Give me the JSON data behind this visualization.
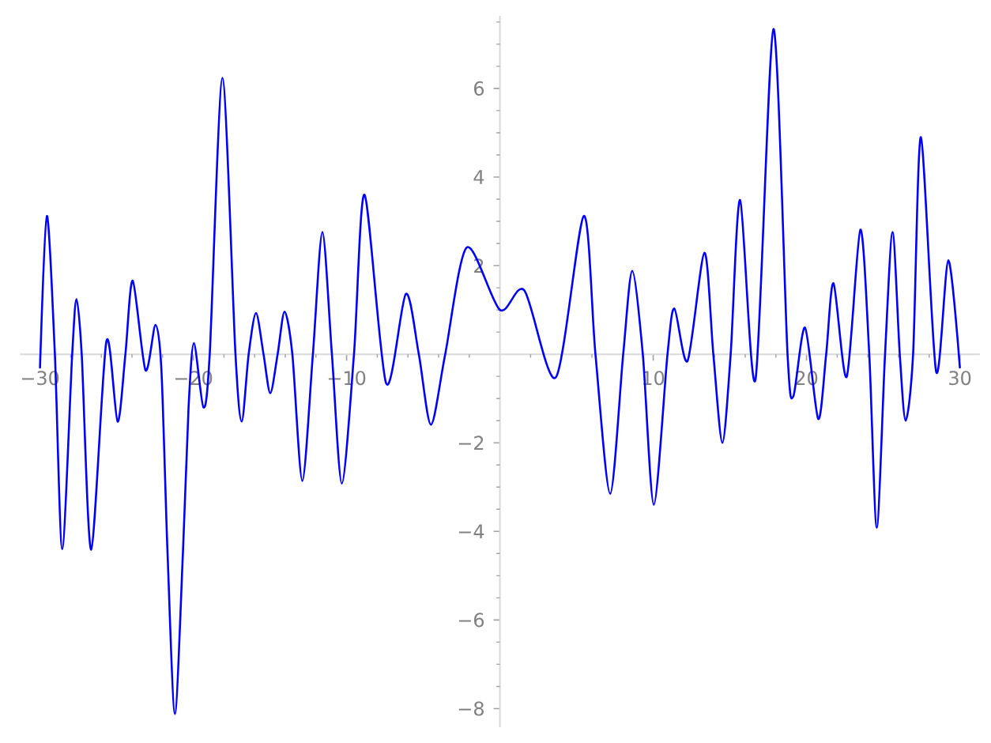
{
  "chart_data": {
    "type": "line",
    "x": [
      -30,
      -29.55,
      -29.03,
      -28.55,
      -27.9,
      -27.62,
      -27.28,
      -26.66,
      -25.67,
      -24.94,
      -24.43,
      -23.95,
      -23.12,
      -22.47,
      -22.08,
      -21.68,
      -21.2,
      -20.68,
      -20.31,
      -19.96,
      -19.34,
      -18.93,
      -18.1,
      -17.25,
      -16.84,
      -16.39,
      -15.91,
      -15.42,
      -14.98,
      -14.5,
      -14.05,
      -13.54,
      -12.89,
      -12.2,
      -11.58,
      -10.96,
      -10.31,
      -9.52,
      -8.83,
      -7.42,
      -6.14,
      -5.29,
      -4.5,
      -3.57,
      -2.16,
      0,
      1.59,
      3.65,
      5.47,
      6.23,
      7.19,
      8.04,
      8.63,
      9.32,
      10.04,
      10.93,
      11.38,
      12.24,
      13.34,
      13.92,
      14.51,
      15.05,
      15.67,
      16.67,
      17.84,
      18.76,
      19.14,
      19.9,
      20.76,
      21.28,
      21.76,
      22.62,
      23.51,
      24.09,
      24.58,
      25.12,
      25.61,
      26.08,
      26.46,
      26.95,
      27.46,
      28.45,
      29.25,
      30
    ],
    "values": [
      -0.3,
      3.12,
      0,
      -4.4,
      0,
      1.24,
      0,
      -4.41,
      0.29,
      -1.52,
      0,
      1.66,
      -0.36,
      0.66,
      -0.36,
      -4.5,
      -8.12,
      -4.5,
      -1.2,
      0.25,
      -1.2,
      0,
      6.24,
      0,
      -1.52,
      0,
      0.93,
      0,
      -0.88,
      0,
      0.96,
      0,
      -2.86,
      0,
      2.76,
      0,
      -2.92,
      0,
      3.6,
      -0.66,
      1.36,
      0,
      -1.59,
      0,
      2.41,
      1.0,
      1.44,
      -0.52,
      3.12,
      0,
      -3.15,
      0,
      1.88,
      0,
      -3.4,
      0,
      1.03,
      -0.15,
      2.29,
      0,
      -2.0,
      0,
      3.48,
      -0.57,
      7.34,
      0,
      -0.95,
      0.6,
      -1.46,
      0,
      1.6,
      -0.51,
      2.81,
      0,
      -3.92,
      0,
      2.76,
      0,
      -1.5,
      0,
      4.9,
      -0.39,
      2.12,
      -0.3
    ],
    "color": "#0000ff",
    "xlim": [
      -31.3,
      31.3
    ],
    "ylim": [
      -8.42,
      7.64
    ],
    "xticks": [
      {
        "value": -30,
        "label": "−30"
      },
      {
        "value": -28,
        "label": null
      },
      {
        "value": -26,
        "label": null
      },
      {
        "value": -24,
        "label": null
      },
      {
        "value": -22,
        "label": null
      },
      {
        "value": -20,
        "label": "−20"
      },
      {
        "value": -18,
        "label": null
      },
      {
        "value": -16,
        "label": null
      },
      {
        "value": -14,
        "label": null
      },
      {
        "value": -12,
        "label": null
      },
      {
        "value": -10,
        "label": "−10"
      },
      {
        "value": -8,
        "label": null
      },
      {
        "value": -6,
        "label": null
      },
      {
        "value": -4,
        "label": null
      },
      {
        "value": -2,
        "label": null
      },
      {
        "value": 2,
        "label": null
      },
      {
        "value": 4,
        "label": null
      },
      {
        "value": 6,
        "label": null
      },
      {
        "value": 8,
        "label": null
      },
      10,
      {
        "value": 12,
        "label": null
      },
      {
        "value": 14,
        "label": null
      },
      {
        "value": 16,
        "label": null
      },
      {
        "value": 18,
        "label": null
      },
      20,
      {
        "value": 22,
        "label": null
      },
      {
        "value": 24,
        "label": null
      },
      {
        "value": 26,
        "label": null
      },
      {
        "value": 28,
        "label": null
      },
      30
    ],
    "yticks": [
      {
        "value": -8,
        "label": "−8"
      },
      {
        "value": -7.5,
        "label": null
      },
      {
        "value": -7,
        "label": null
      },
      {
        "value": -6.5,
        "label": null
      },
      {
        "value": -6,
        "label": "−6"
      },
      {
        "value": -5.5,
        "label": null
      },
      {
        "value": -5,
        "label": null
      },
      {
        "value": -4.5,
        "label": null
      },
      {
        "value": -4,
        "label": "−4"
      },
      {
        "value": -3.5,
        "label": null
      },
      {
        "value": -3,
        "label": null
      },
      {
        "value": -2.5,
        "label": null
      },
      {
        "value": -2,
        "label": "−2"
      },
      {
        "value": -1.5,
        "label": null
      },
      {
        "value": -1,
        "label": null
      },
      {
        "value": -0.5,
        "label": null
      },
      {
        "value": 0.5,
        "label": null
      },
      {
        "value": 1,
        "label": null
      },
      {
        "value": 1.5,
        "label": null
      },
      2,
      {
        "value": 2.5,
        "label": null
      },
      {
        "value": 3,
        "label": null
      },
      {
        "value": 3.5,
        "label": null
      },
      4,
      {
        "value": 4.5,
        "label": null
      },
      {
        "value": 5,
        "label": null
      },
      {
        "value": 5.5,
        "label": null
      },
      6,
      {
        "value": 6.5,
        "label": null
      },
      {
        "value": 7,
        "label": null
      },
      {
        "value": 7.5,
        "label": null
      }
    ]
  }
}
